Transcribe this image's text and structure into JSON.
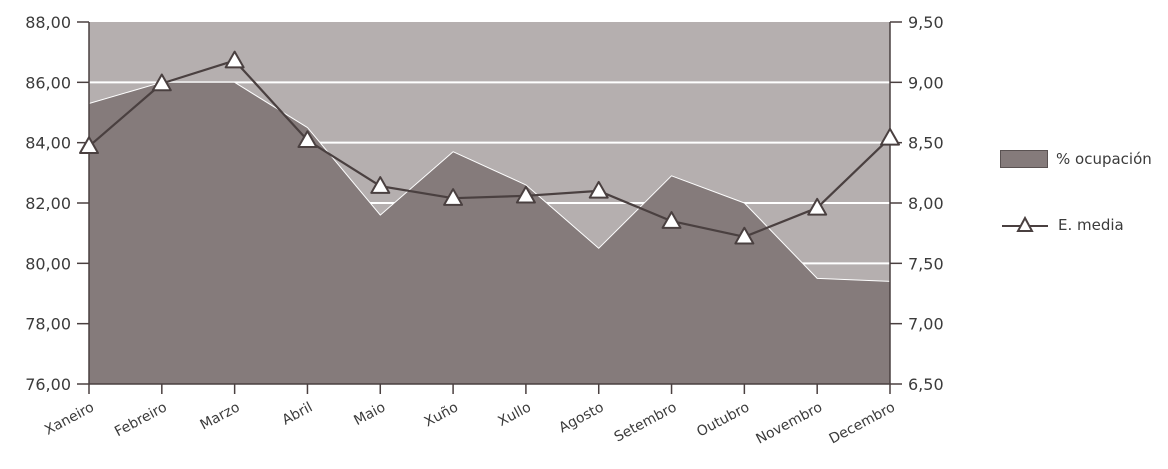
{
  "chart_data": {
    "type": "area",
    "categories": [
      "Xaneiro",
      "Febreiro",
      "Marzo",
      "Abril",
      "Maio",
      "Xuño",
      "Xullo",
      "Agosto",
      "Setembro",
      "Outubro",
      "Novembro",
      "Decembro"
    ],
    "series": [
      {
        "name": "% ocupación",
        "type": "area",
        "axis": "left",
        "values": [
          85.3,
          86.0,
          86.0,
          84.5,
          81.6,
          83.7,
          82.6,
          80.5,
          82.9,
          82.0,
          79.5,
          79.4
        ]
      },
      {
        "name": "E. media",
        "type": "line",
        "axis": "right",
        "marker": "triangle",
        "values": [
          8.47,
          8.99,
          9.18,
          8.52,
          8.14,
          8.04,
          8.06,
          8.1,
          7.85,
          7.72,
          7.96,
          8.54
        ]
      }
    ],
    "y_left": {
      "ylim": [
        76,
        88
      ],
      "ticks": [
        "76,00",
        "78,00",
        "80,00",
        "82,00",
        "84,00",
        "86,00",
        "88,00"
      ]
    },
    "y_right": {
      "ylim": [
        6.5,
        9.5
      ],
      "ticks": [
        "6,50",
        "7,00",
        "7,50",
        "8,00",
        "8,50",
        "9,00",
        "9,50"
      ]
    },
    "grid": true,
    "legend_position": "right",
    "colors": {
      "plot_background": "#b5afaf",
      "area_fill": "#857b7b",
      "gridline": "#ffffff",
      "line": "#4a4040",
      "marker_fill": "#ffffff",
      "axis": "#4a4040",
      "text": "#3b3b3b"
    }
  },
  "legend": {
    "area_label": "% ocupación",
    "line_label": "E. media"
  }
}
